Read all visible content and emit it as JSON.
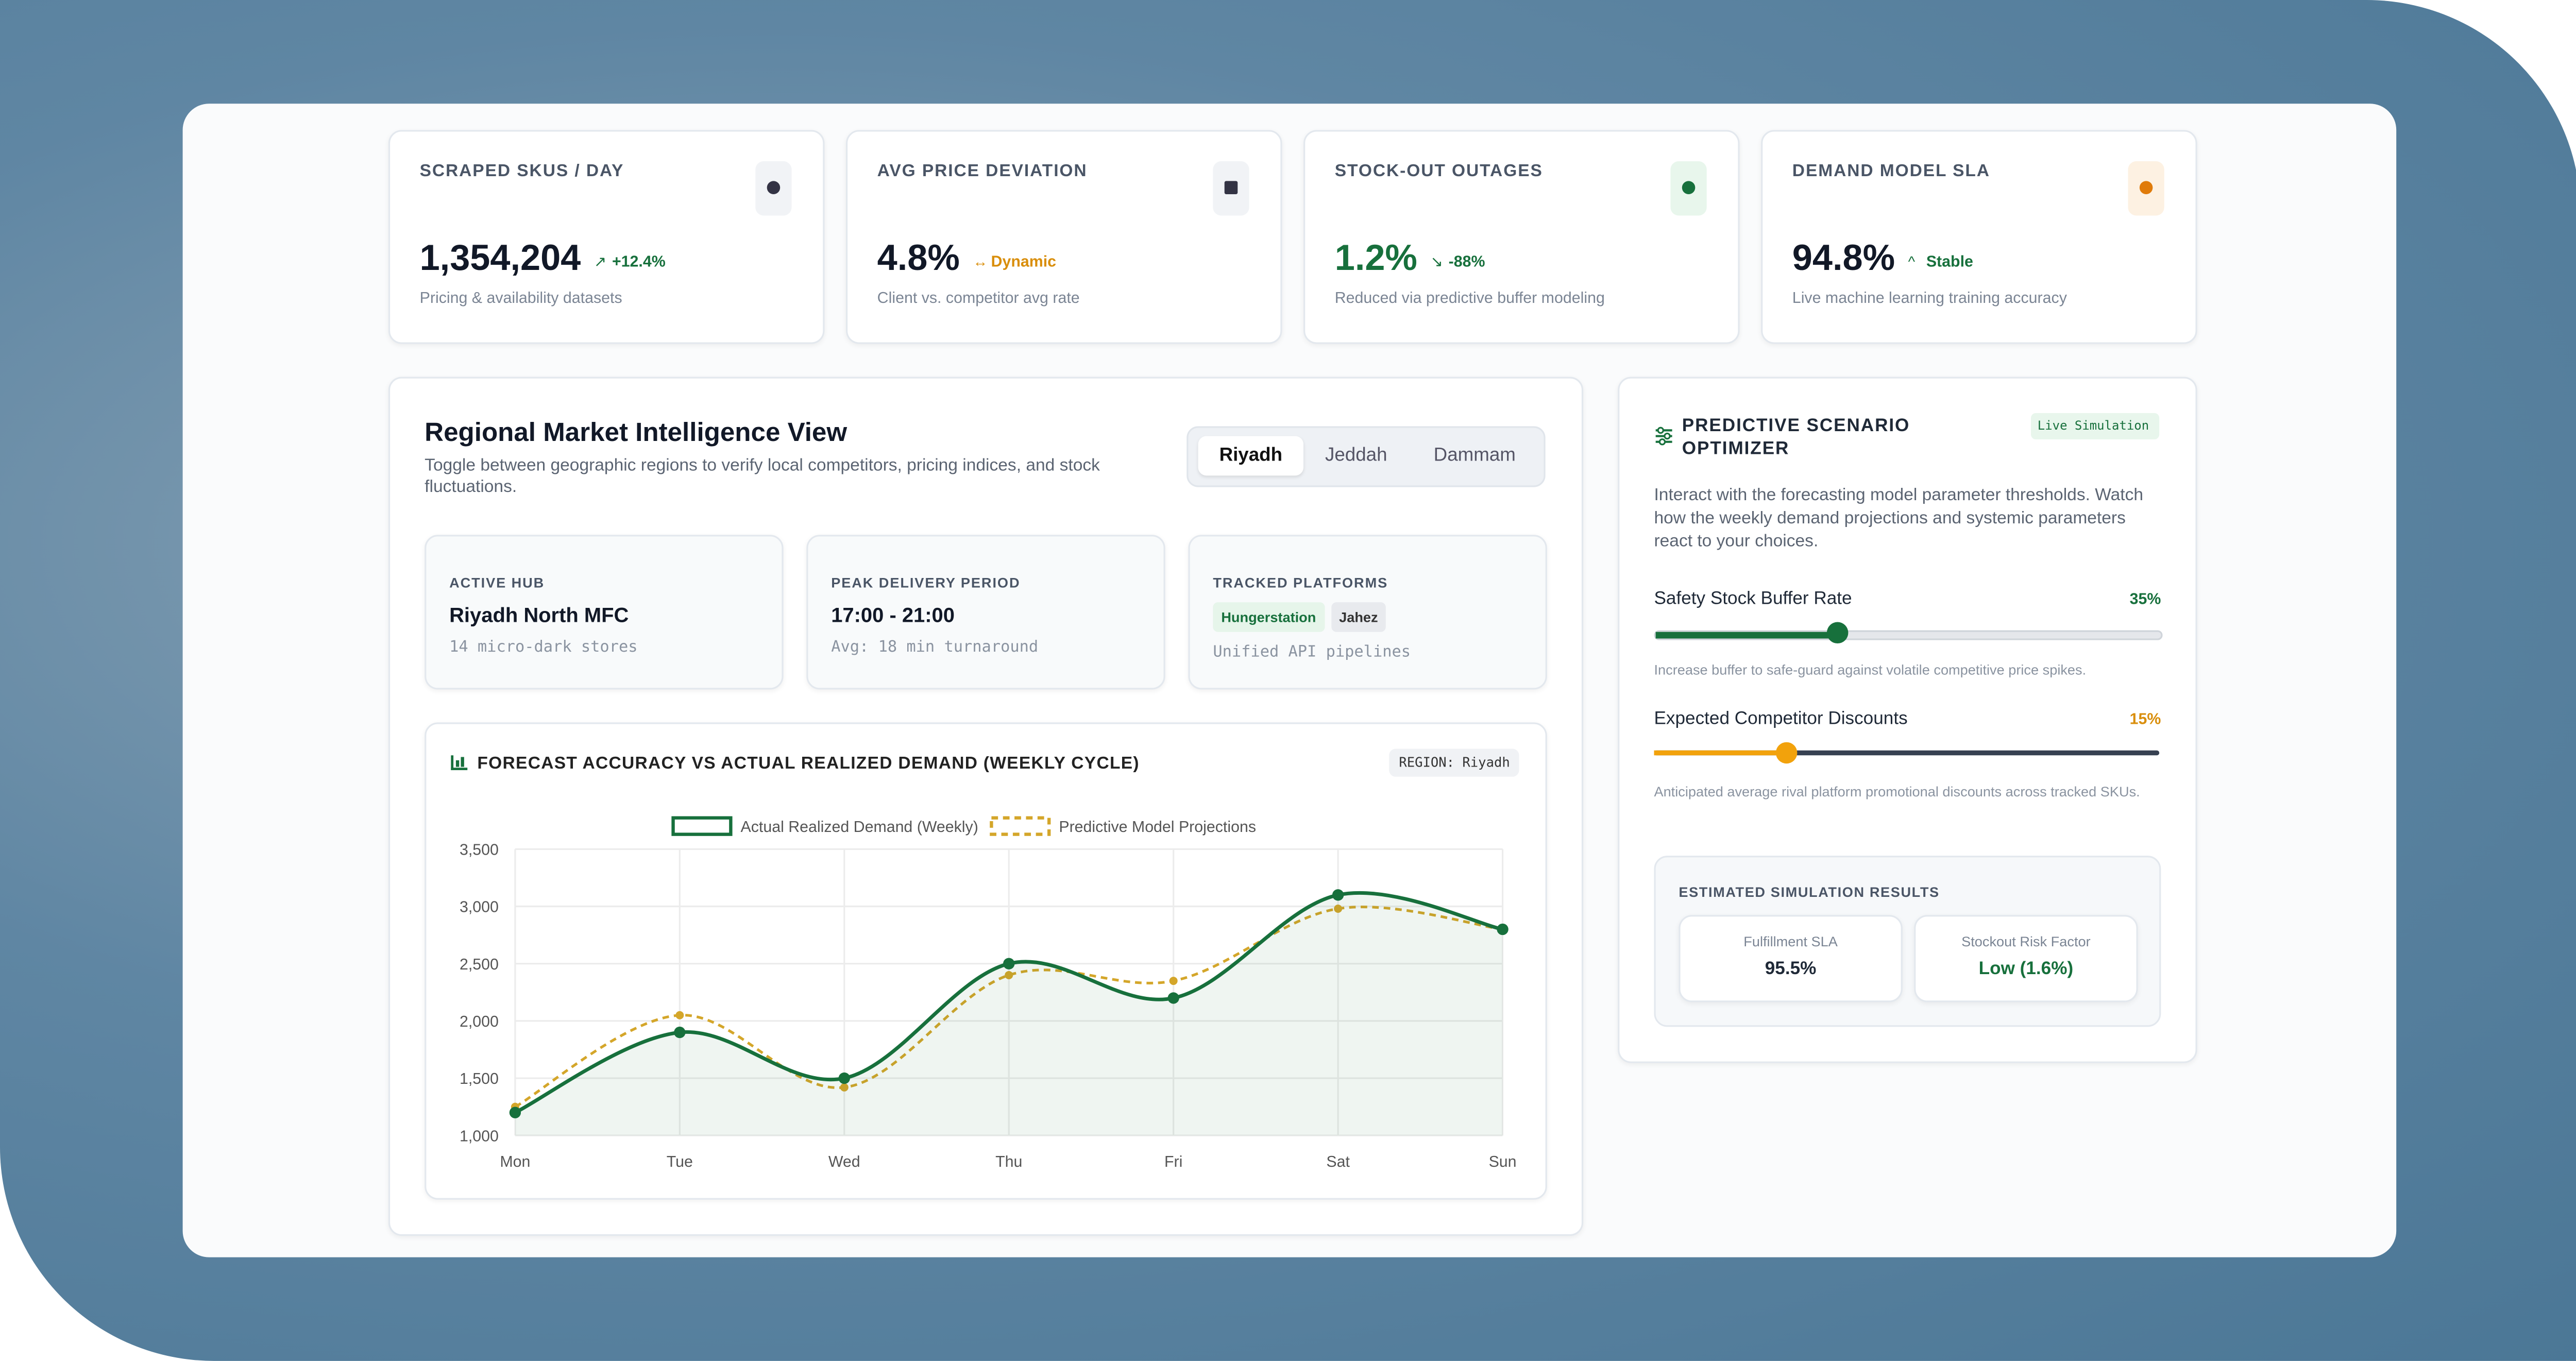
{
  "kpis": [
    {
      "label": "SCRAPED SKUS / DAY",
      "value": "1,354,204",
      "change": "+12.4%",
      "note": "Pricing & availability datasets"
    },
    {
      "label": "AVG PRICE DEVIATION",
      "value": "4.8%",
      "change": "Dynamic",
      "note": "Client vs. competitor avg rate"
    },
    {
      "label": "STOCK-OUT OUTAGES",
      "value": "1.2%",
      "change": "-88%",
      "note": "Reduced via predictive buffer modeling"
    },
    {
      "label": "DEMAND MODEL SLA",
      "value": "94.8%",
      "change": "Stable",
      "note": "Live machine learning training accuracy"
    }
  ],
  "panel": {
    "title": "Regional Market Intelligence View",
    "subtitle": "Toggle between geographic regions to verify local competitors, pricing indices, and stock fluctuations.",
    "tabs": [
      "Riyadh",
      "Jeddah",
      "Dammam"
    ],
    "info": [
      {
        "label": "ACTIVE HUB",
        "value": "Riyadh North MFC",
        "note": "14 micro-dark stores"
      },
      {
        "label": "PEAK DELIVERY PERIOD",
        "value": "17:00 - 21:00",
        "note": "Avg: 18 min turnaround"
      },
      {
        "label": "TRACKED PLATFORMS",
        "tags": [
          "Hungerstation",
          "Jahez"
        ],
        "note": "Unified API pipelines"
      }
    ]
  },
  "chart_data": {
    "type": "line",
    "title": "FORECAST ACCURACY VS ACTUAL REALIZED DEMAND (WEEKLY CYCLE)",
    "badge": "REGION: Riyadh",
    "categories": [
      "Mon",
      "Tue",
      "Wed",
      "Thu",
      "Fri",
      "Sat",
      "Sun"
    ],
    "series": [
      {
        "name": "Actual Realized Demand (Weekly)",
        "color": "#17703c",
        "values": [
          1200,
          1900,
          1500,
          2500,
          2200,
          3100,
          2800
        ]
      },
      {
        "name": "Predictive Model Projections",
        "color": "#d4a62a",
        "values": [
          1250,
          2050,
          1420,
          2400,
          2350,
          2980,
          2800
        ]
      }
    ],
    "ylim": [
      1000,
      3500
    ],
    "yticks": [
      {
        "value": 1000,
        "label": "1,000"
      },
      {
        "value": 1500,
        "label": "1,500"
      },
      {
        "value": 2000,
        "label": "2,000"
      },
      {
        "value": 2500,
        "label": "2,500"
      },
      {
        "value": 3000,
        "label": "3,000"
      },
      {
        "value": 3500,
        "label": "3,500"
      }
    ],
    "grid": true,
    "legend": "top"
  },
  "optimizer": {
    "title": "PREDICTIVE SCENARIO OPTIMIZER",
    "badge": "Live Simulation",
    "description": "Interact with the forecasting model parameter thresholds. Watch how the weekly demand projections and systemic parameters react to your choices.",
    "sliders": [
      {
        "label": "Safety Stock Buffer Rate",
        "value_label": "35%",
        "help": "Increase buffer to safe-guard against volatile competitive price spikes."
      },
      {
        "label": "Expected Competitor Discounts",
        "value_label": "15%",
        "help": "Anticipated average rival platform promotional discounts across tracked SKUs."
      }
    ],
    "results_title": "ESTIMATED SIMULATION RESULTS",
    "results": [
      {
        "label": "Fulfillment SLA",
        "value": "95.5%"
      },
      {
        "label": "Stockout Risk Factor",
        "value": "Low (1.6%)"
      }
    ]
  }
}
